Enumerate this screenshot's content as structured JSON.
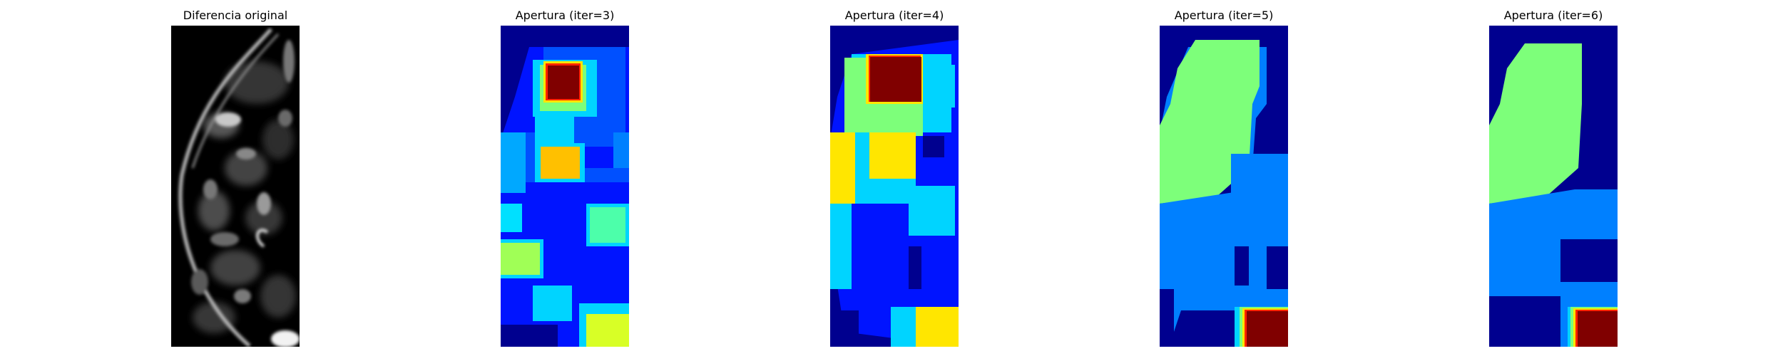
{
  "figure": {
    "panels": [
      {
        "title": "Diferencia original",
        "colormap": "gray"
      },
      {
        "title": "Apertura (iter=3)",
        "colormap": "jet"
      },
      {
        "title": "Apertura (iter=4)",
        "colormap": "jet"
      },
      {
        "title": "Apertura (iter=5)",
        "colormap": "jet"
      },
      {
        "title": "Apertura (iter=6)",
        "colormap": "jet"
      }
    ]
  },
  "colors": {
    "jet_darkblue": "#00008f",
    "jet_blue": "#0014ff",
    "jet_mid_blue": "#0080ff",
    "jet_cyan": "#00d4ff",
    "jet_green": "#7dff7a",
    "jet_yellow": "#ffe600",
    "jet_orange": "#ffc000",
    "jet_darkred": "#800000"
  }
}
